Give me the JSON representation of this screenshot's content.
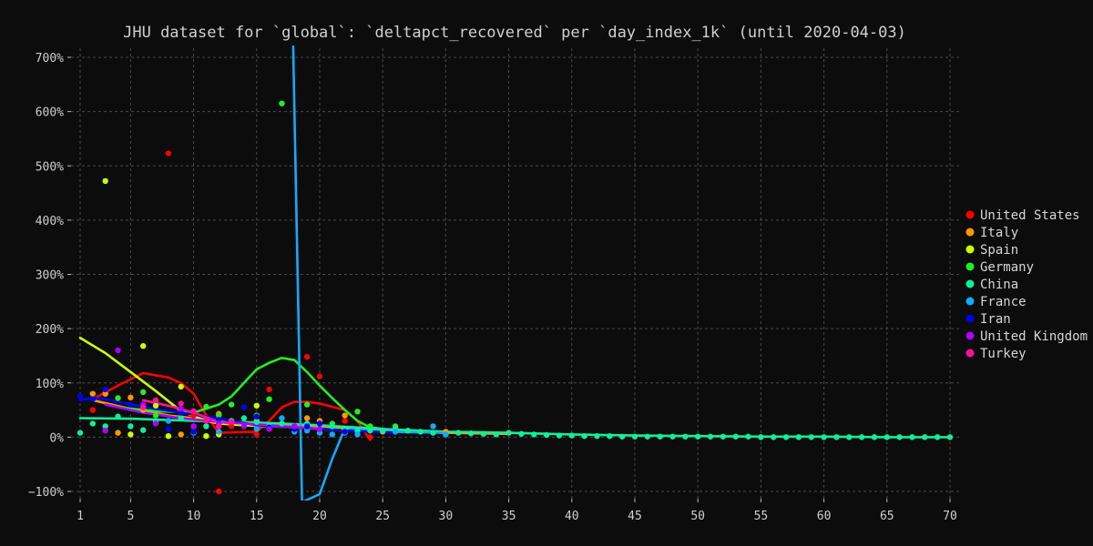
{
  "chart_data": {
    "type": "scatter",
    "title": "JHU dataset for `global`: `deltapct_recovered` per `day_index_1k` (until 2020-04-03)",
    "xlabel": "",
    "ylabel": "",
    "xlim": [
      1,
      70
    ],
    "ylim": [
      -100,
      700
    ],
    "x_ticks": [
      1,
      5,
      10,
      15,
      20,
      25,
      30,
      35,
      40,
      45,
      50,
      55,
      60,
      65,
      70
    ],
    "y_ticks": [
      -100,
      0,
      100,
      200,
      300,
      400,
      500,
      600,
      700
    ],
    "y_tick_labels": [
      "−100%",
      "0%",
      "100%",
      "200%",
      "300%",
      "400%",
      "500%",
      "600%",
      "700%"
    ],
    "grid": true,
    "legend_position": "right",
    "series": [
      {
        "name": "United States",
        "color": "#ff0000",
        "points": [
          [
            2,
            50
          ],
          [
            3,
            80
          ],
          [
            5,
            60
          ],
          [
            8,
            523
          ],
          [
            10,
            40
          ],
          [
            11,
            20
          ],
          [
            12,
            -100
          ],
          [
            13,
            20
          ],
          [
            15,
            5
          ],
          [
            16,
            88
          ],
          [
            18,
            20
          ],
          [
            19,
            148
          ],
          [
            20,
            112
          ],
          [
            22,
            30
          ],
          [
            24,
            0
          ]
        ],
        "trend": [
          [
            2,
            70
          ],
          [
            4,
            95
          ],
          [
            6,
            118
          ],
          [
            8,
            110
          ],
          [
            9,
            100
          ],
          [
            10,
            80
          ],
          [
            11,
            40
          ],
          [
            12,
            8
          ],
          [
            15,
            10
          ],
          [
            16,
            30
          ],
          [
            17,
            55
          ],
          [
            18,
            65
          ],
          [
            19,
            65
          ],
          [
            20,
            62
          ],
          [
            22,
            50
          ],
          [
            23,
            30
          ],
          [
            24,
            -5
          ]
        ]
      },
      {
        "name": "Italy",
        "color": "#ff9900",
        "points": [
          [
            2,
            80
          ],
          [
            3,
            80
          ],
          [
            4,
            8
          ],
          [
            5,
            73
          ],
          [
            6,
            50
          ],
          [
            9,
            5
          ],
          [
            10,
            20
          ],
          [
            12,
            43
          ],
          [
            15,
            30
          ],
          [
            19,
            35
          ],
          [
            20,
            30
          ],
          [
            22,
            40
          ],
          [
            25,
            10
          ],
          [
            30,
            10
          ]
        ],
        "trend": [
          [
            2,
            68
          ],
          [
            5,
            52
          ],
          [
            8,
            40
          ],
          [
            12,
            30
          ],
          [
            16,
            25
          ],
          [
            20,
            20
          ],
          [
            25,
            12
          ],
          [
            30,
            8
          ],
          [
            35,
            6
          ]
        ]
      },
      {
        "name": "Spain",
        "color": "#ccff00",
        "points": [
          [
            3,
            472
          ],
          [
            5,
            5
          ],
          [
            6,
            168
          ],
          [
            7,
            58
          ],
          [
            8,
            2
          ],
          [
            9,
            93
          ],
          [
            11,
            2
          ],
          [
            12,
            5
          ],
          [
            15,
            58
          ],
          [
            19,
            20
          ],
          [
            20,
            20
          ],
          [
            22,
            15
          ]
        ],
        "trend": [
          [
            1,
            183
          ],
          [
            3,
            155
          ],
          [
            5,
            120
          ],
          [
            7,
            85
          ],
          [
            9,
            48
          ],
          [
            11,
            30
          ],
          [
            12,
            25
          ],
          [
            14,
            22
          ],
          [
            18,
            18
          ],
          [
            22,
            12
          ]
        ]
      },
      {
        "name": "Germany",
        "color": "#22ee22",
        "points": [
          [
            4,
            72
          ],
          [
            6,
            83
          ],
          [
            7,
            40
          ],
          [
            9,
            45
          ],
          [
            11,
            56
          ],
          [
            12,
            40
          ],
          [
            13,
            60
          ],
          [
            15,
            40
          ],
          [
            16,
            70
          ],
          [
            17,
            615
          ],
          [
            19,
            60
          ],
          [
            21,
            25
          ],
          [
            23,
            47
          ],
          [
            24,
            20
          ],
          [
            26,
            20
          ]
        ],
        "trend": [
          [
            4,
            55
          ],
          [
            7,
            48
          ],
          [
            10,
            45
          ],
          [
            12,
            60
          ],
          [
            13,
            75
          ],
          [
            14,
            100
          ],
          [
            15,
            125
          ],
          [
            16,
            137
          ],
          [
            17,
            146
          ],
          [
            18,
            142
          ],
          [
            19,
            120
          ],
          [
            20,
            95
          ],
          [
            21,
            72
          ],
          [
            22,
            50
          ],
          [
            23,
            30
          ],
          [
            24,
            18
          ],
          [
            26,
            12
          ]
        ]
      },
      {
        "name": "China",
        "color": "#11ee99",
        "points": [
          [
            1,
            8
          ],
          [
            2,
            25
          ],
          [
            3,
            20
          ],
          [
            4,
            38
          ],
          [
            5,
            20
          ],
          [
            6,
            13
          ],
          [
            7,
            28
          ],
          [
            8,
            30
          ],
          [
            9,
            35
          ],
          [
            10,
            10
          ],
          [
            11,
            20
          ],
          [
            12,
            30
          ],
          [
            13,
            30
          ],
          [
            14,
            35
          ],
          [
            15,
            28
          ],
          [
            16,
            20
          ],
          [
            17,
            25
          ],
          [
            18,
            15
          ],
          [
            19,
            25
          ],
          [
            20,
            22
          ],
          [
            21,
            20
          ],
          [
            22,
            15
          ],
          [
            23,
            12
          ],
          [
            24,
            12
          ],
          [
            25,
            12
          ],
          [
            26,
            15
          ],
          [
            27,
            12
          ],
          [
            28,
            10
          ],
          [
            29,
            8
          ],
          [
            30,
            5
          ],
          [
            31,
            8
          ],
          [
            32,
            7
          ],
          [
            33,
            6
          ],
          [
            34,
            5
          ],
          [
            35,
            8
          ],
          [
            36,
            6
          ],
          [
            37,
            5
          ],
          [
            38,
            4
          ],
          [
            39,
            3
          ],
          [
            40,
            3
          ],
          [
            41,
            2
          ],
          [
            42,
            2
          ],
          [
            43,
            2
          ],
          [
            44,
            1
          ],
          [
            45,
            1
          ],
          [
            46,
            1
          ],
          [
            47,
            1
          ],
          [
            48,
            1
          ],
          [
            49,
            1
          ],
          [
            50,
            1
          ],
          [
            51,
            1
          ],
          [
            52,
            1
          ],
          [
            53,
            1
          ],
          [
            54,
            1
          ],
          [
            55,
            0
          ],
          [
            56,
            0
          ],
          [
            57,
            0
          ],
          [
            58,
            0
          ],
          [
            59,
            0
          ],
          [
            60,
            0
          ],
          [
            61,
            0
          ],
          [
            62,
            0
          ],
          [
            63,
            0
          ],
          [
            64,
            0
          ],
          [
            65,
            0
          ],
          [
            66,
            0
          ],
          [
            67,
            0
          ],
          [
            68,
            0
          ],
          [
            69,
            0
          ],
          [
            70,
            0
          ]
        ],
        "trend": [
          [
            1,
            35
          ],
          [
            5,
            34
          ],
          [
            10,
            30
          ],
          [
            15,
            27
          ],
          [
            20,
            22
          ],
          [
            25,
            15
          ],
          [
            30,
            10
          ],
          [
            35,
            8
          ],
          [
            40,
            5
          ],
          [
            45,
            3
          ],
          [
            50,
            2
          ],
          [
            55,
            1
          ],
          [
            60,
            1
          ],
          [
            65,
            0
          ],
          [
            70,
            0
          ]
        ]
      },
      {
        "name": "France",
        "color": "#11aaff",
        "points": [
          [
            8,
            30
          ],
          [
            10,
            8
          ],
          [
            12,
            10
          ],
          [
            15,
            15
          ],
          [
            17,
            35
          ],
          [
            18,
            10
          ],
          [
            19,
            12
          ],
          [
            20,
            8
          ],
          [
            21,
            5
          ],
          [
            22,
            8
          ],
          [
            23,
            5
          ],
          [
            26,
            10
          ],
          [
            29,
            20
          ],
          [
            30,
            5
          ]
        ],
        "trend": [
          [
            17.9,
            720
          ],
          [
            18.6,
            -120
          ],
          [
            20,
            -105
          ],
          [
            21,
            -40
          ],
          [
            21.8,
            5
          ],
          [
            22.5,
            15
          ],
          [
            25,
            10
          ],
          [
            30,
            8
          ]
        ]
      },
      {
        "name": "Iran",
        "color": "#0000ee",
        "points": [
          [
            1,
            75
          ],
          [
            2,
            70
          ],
          [
            3,
            88
          ],
          [
            5,
            60
          ],
          [
            8,
            15
          ],
          [
            9,
            45
          ],
          [
            10,
            10
          ],
          [
            11,
            30
          ],
          [
            12,
            32
          ],
          [
            14,
            55
          ],
          [
            15,
            38
          ],
          [
            16,
            18
          ],
          [
            18,
            15
          ],
          [
            19,
            20
          ],
          [
            20,
            25
          ],
          [
            22,
            10
          ]
        ],
        "trend": [
          [
            1,
            68
          ],
          [
            2,
            72
          ],
          [
            3,
            70
          ],
          [
            5,
            60
          ],
          [
            7,
            52
          ],
          [
            9,
            45
          ],
          [
            11,
            38
          ],
          [
            13,
            30
          ],
          [
            15,
            22
          ],
          [
            18,
            18
          ],
          [
            22,
            12
          ],
          [
            26,
            8
          ]
        ]
      },
      {
        "name": "United Kingdom",
        "color": "#aa00ff",
        "points": [
          [
            3,
            12
          ],
          [
            4,
            160
          ],
          [
            6,
            60
          ],
          [
            7,
            25
          ],
          [
            9,
            52
          ],
          [
            10,
            20
          ],
          [
            12,
            25
          ],
          [
            14,
            20
          ],
          [
            16,
            15
          ],
          [
            18,
            20
          ],
          [
            20,
            15
          ]
        ],
        "trend": [
          [
            3,
            60
          ],
          [
            6,
            45
          ],
          [
            9,
            35
          ],
          [
            12,
            28
          ],
          [
            16,
            22
          ],
          [
            20,
            15
          ]
        ]
      },
      {
        "name": "Turkey",
        "color": "#ff1199",
        "points": [
          [
            6,
            55
          ],
          [
            7,
            68
          ],
          [
            9,
            62
          ],
          [
            10,
            48
          ],
          [
            11,
            30
          ],
          [
            12,
            20
          ],
          [
            13,
            28
          ]
        ],
        "trend": [
          [
            6,
            68
          ],
          [
            8,
            58
          ],
          [
            10,
            45
          ],
          [
            12,
            28
          ],
          [
            13,
            25
          ]
        ]
      }
    ]
  }
}
